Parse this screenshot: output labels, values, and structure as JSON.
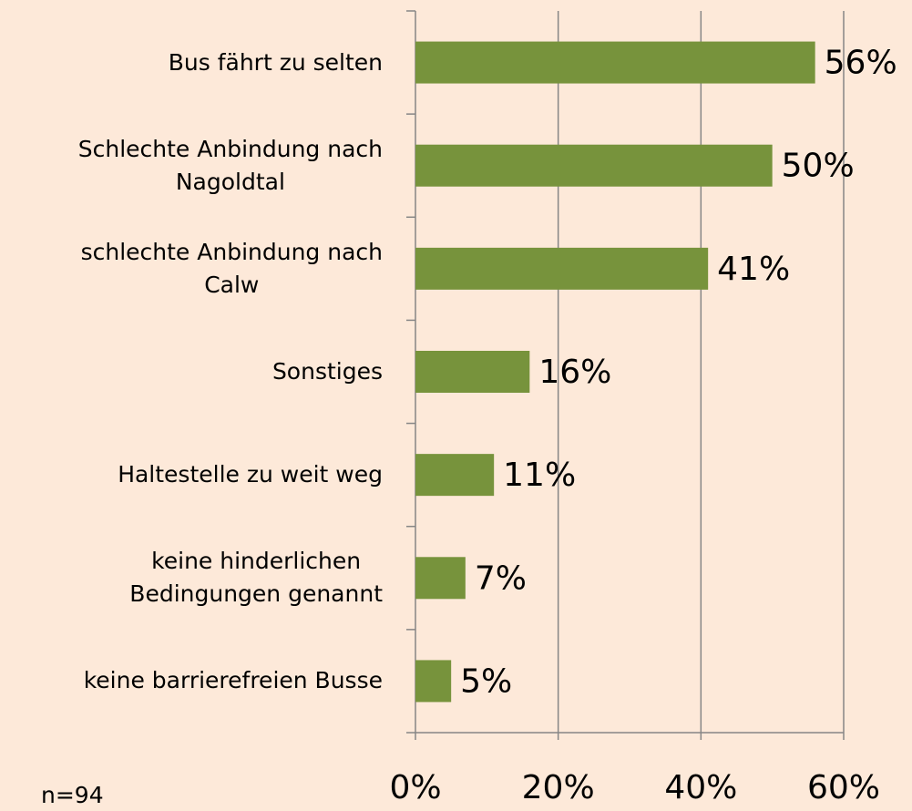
{
  "chart_data": {
    "type": "bar",
    "orientation": "horizontal",
    "categories": [
      "Bus fährt zu selten",
      "Schlechte Anbindung nach\nNagoldtal",
      "schlechte Anbindung nach\nCalw",
      "Sonstiges",
      "Haltestelle zu weit weg",
      "keine hinderlichen\nBedingungen genannt",
      "keine barrierefreien Busse"
    ],
    "values": [
      56,
      50,
      41,
      16,
      11,
      7,
      5
    ],
    "value_labels": [
      "56%",
      "50%",
      "41%",
      "16%",
      "11%",
      "7%",
      "5%"
    ],
    "color": "#77933c",
    "xlim": [
      0,
      60
    ],
    "xticks": [
      {
        "value": 0,
        "label": "0%"
      },
      {
        "value": 20,
        "label": "20%"
      },
      {
        "value": 40,
        "label": "40%"
      },
      {
        "value": 60,
        "label": "60%"
      }
    ],
    "grid": true,
    "annotation": "n=94"
  }
}
